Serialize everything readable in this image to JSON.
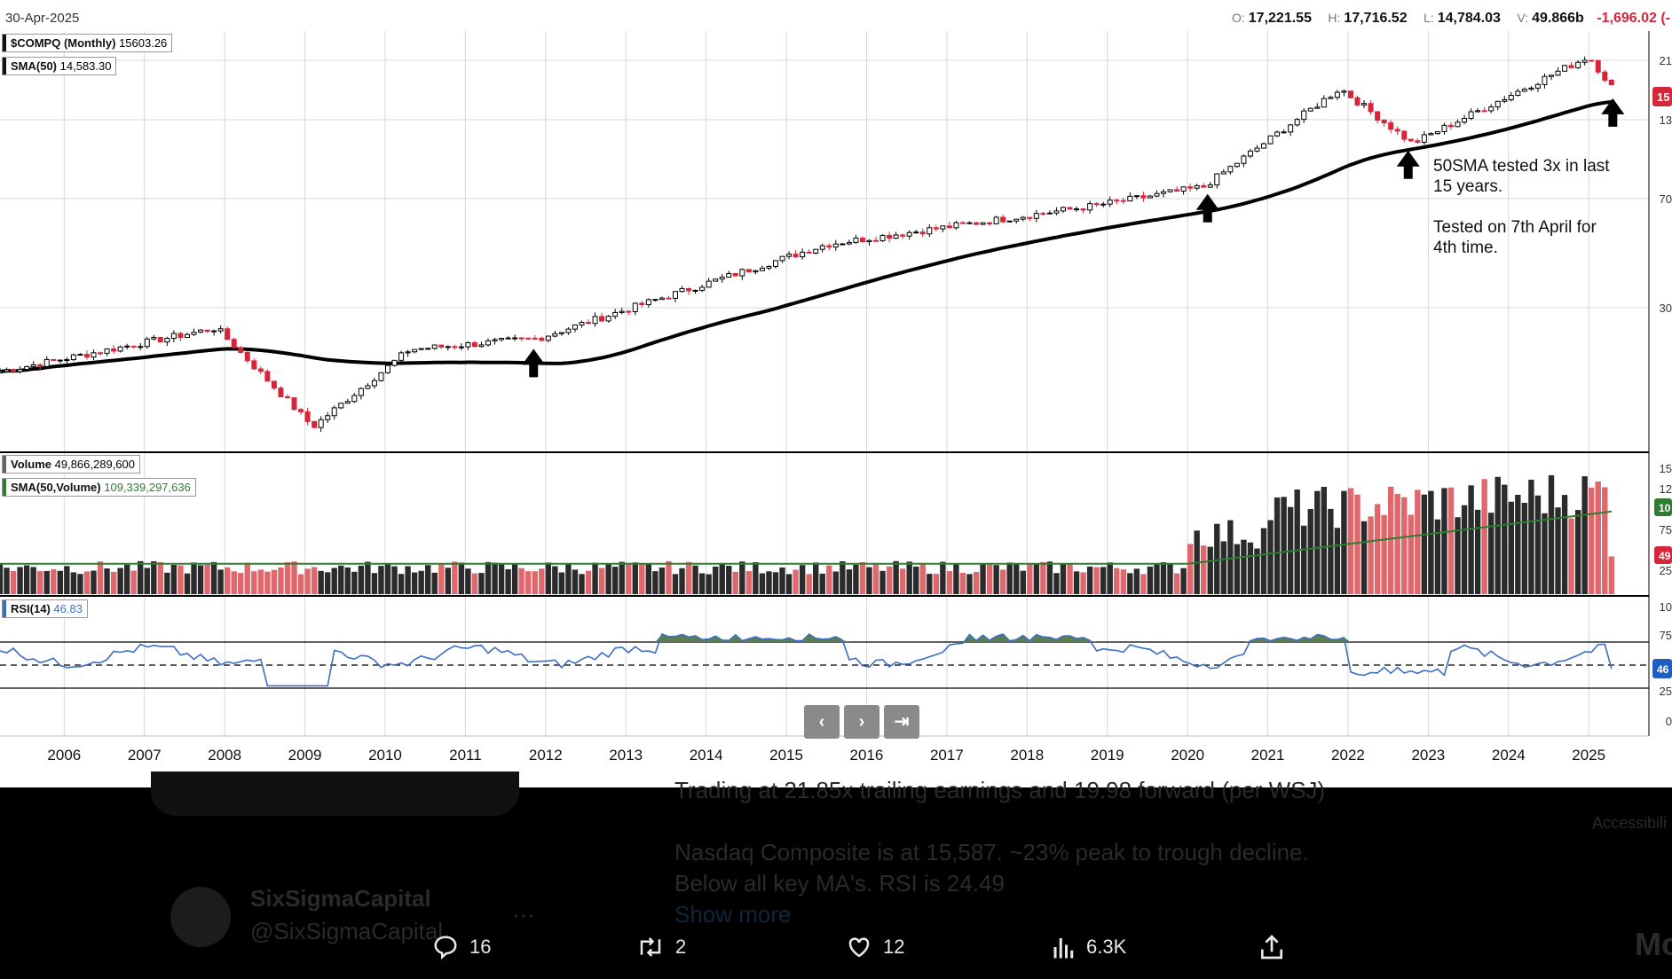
{
  "header": {
    "date": "30-Apr-2025",
    "ohlc": {
      "o_label": "O:",
      "o": "17,221.55",
      "h_label": "H:",
      "h": "17,716.52",
      "l_label": "L:",
      "l": "14,784.03",
      "v_label": "V:",
      "v": "49.866b",
      "change": "-1,696.02 (-"
    }
  },
  "legend": {
    "price": {
      "label": "$COMPQ (Monthly)",
      "value": "15603.26"
    },
    "sma": {
      "label": "SMA(50)",
      "value": "14,583.30"
    },
    "volume": {
      "label": "Volume",
      "value": "49,866,289,600"
    },
    "sma_volume": {
      "label": "SMA(50,Volume)",
      "value": "109,339,297,636"
    },
    "rsi": {
      "label": "RSI(14)",
      "value": "46.83"
    }
  },
  "annotations": {
    "line1": "50SMA tested 3x in last",
    "line2": "15 years.",
    "line3": "Tested on 7th April for",
    "line4": "4th time."
  },
  "nav": {
    "prev": "‹",
    "next": "›",
    "end": "⇥"
  },
  "colors": {
    "up": "#ffffff",
    "down": "#d6263a",
    "sma": "#000000",
    "vol_up": "#2b2b2b",
    "vol_down": "#e0676c",
    "vol_sma": "#2e7d32",
    "rsi": "#3b6fc4",
    "rsi_fill": "#5a7f4f"
  },
  "chart_data": {
    "type": "candlestick",
    "title": "$COMPQ (Monthly)",
    "x": {
      "ticks": [
        "2006",
        "2007",
        "2008",
        "2009",
        "2010",
        "2011",
        "2012",
        "2013",
        "2014",
        "2015",
        "2016",
        "2017",
        "2018",
        "2019",
        "2020",
        "2021",
        "2022",
        "2023",
        "2024",
        "2025"
      ]
    },
    "price_axis_labels": [
      "21",
      "13",
      "70",
      "30"
    ],
    "price_tag": "15",
    "price_key_points": [
      {
        "x": 2005.2,
        "close": 2050
      },
      {
        "x": 2007.9,
        "close": 2800
      },
      {
        "x": 2009.1,
        "close": 1380
      },
      {
        "x": 2010.3,
        "close": 2400
      },
      {
        "x": 2011.9,
        "close": 2600
      },
      {
        "x": 2015.5,
        "close": 5100
      },
      {
        "x": 2018.8,
        "close": 6700
      },
      {
        "x": 2020.2,
        "close": 7700
      },
      {
        "x": 2021.9,
        "close": 15600
      },
      {
        "x": 2022.8,
        "close": 10500
      },
      {
        "x": 2025.0,
        "close": 19600
      },
      {
        "x": 2025.3,
        "close": 15603
      }
    ],
    "sma50": {
      "name": "SMA(50)",
      "last": 14583.3
    },
    "volume": {
      "axis_labels": [
        "15",
        "12",
        "75",
        "25"
      ],
      "tags": [
        "10",
        "49"
      ],
      "last": 49866289600,
      "sma_last": 109339297636
    },
    "rsi": {
      "axis_labels": [
        "10",
        "75",
        "25",
        "0"
      ],
      "tag": "46",
      "levels": [
        70,
        50,
        30
      ],
      "last": 46.83
    },
    "arrows_at": [
      2011.85,
      2020.25,
      2022.75,
      2025.3
    ]
  },
  "tweet": {
    "ghost_text1": "Trading at 21.85x trailing earnings and 19.98 forward (per WSJ)",
    "ghost_text2": "Nasdaq Composite is at 15,587. ~23% peak to trough decline.",
    "ghost_text3": "Below all key MA's. RSI is 24.49",
    "ghost_show_more": "Show more",
    "ghost_name": "SixSigmaCapital",
    "ghost_handle": "@SixSigmaCapital",
    "ghost_more": "···",
    "ghost_side1": "Accessibili",
    "ghost_side2": "Mo",
    "replies": "16",
    "reposts": "2",
    "likes": "12",
    "views": "6.3K"
  }
}
